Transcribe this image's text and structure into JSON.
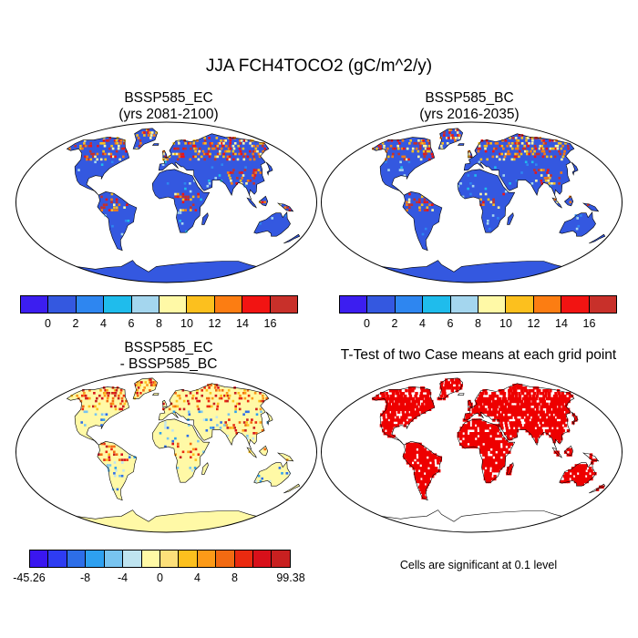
{
  "main_title": "JJA FCH4TOCO2 (gC/m^2/y)",
  "panels": [
    {
      "title1": "BSSP585_EC",
      "title2": "(yrs 2081-2100)"
    },
    {
      "title1": "BSSP585_BC",
      "title2": "(yrs 2016-2035)"
    },
    {
      "title1": "BSSP585_EC",
      "title2": "- BSSP585_BC"
    },
    {
      "title1": "T-Test of two Case means at each grid point",
      "title2": ""
    }
  ],
  "colorbar_top": {
    "colors": [
      "#3c1ef0",
      "#3458e0",
      "#2e86f0",
      "#1fbcec",
      "#a4d6ee",
      "#fff9a6",
      "#fcc01e",
      "#fc7d12",
      "#f21412",
      "#c8302a"
    ],
    "labels": [
      "0",
      "2",
      "4",
      "6",
      "8",
      "10",
      "12",
      "14",
      "16"
    ]
  },
  "colorbar_diff": {
    "colors": [
      "#3a16f0",
      "#2e3cf2",
      "#2d6ee8",
      "#2ea0f0",
      "#78c4f0",
      "#bfe4f0",
      "#fff9a6",
      "#fde07a",
      "#fcc01e",
      "#fc9a18",
      "#f26a12",
      "#ea2a10",
      "#d8101a",
      "#c82020"
    ],
    "labels": [
      "-45.26",
      "-8",
      "-4",
      "0",
      "4",
      "8",
      "99.38"
    ]
  },
  "significance_note": "Cells are significant at 0.1 level",
  "map_colors": {
    "ocean": "#ffffff",
    "land_low": "#3458e0",
    "diff_land": "#fff9a6",
    "significant": "#ee0000",
    "coast": "#000000"
  }
}
